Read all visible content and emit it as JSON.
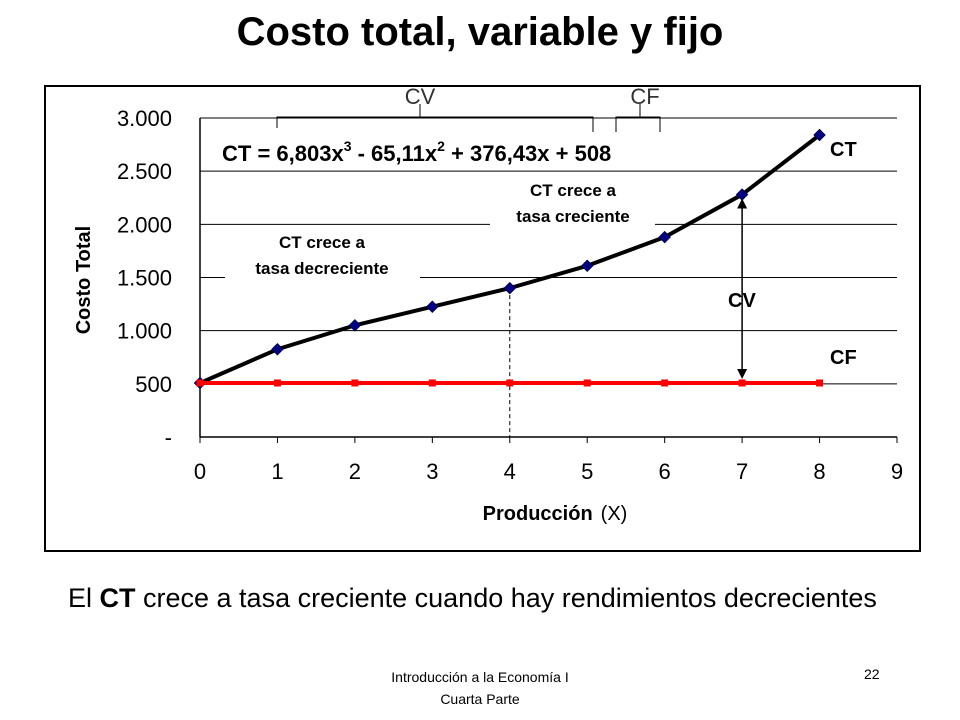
{
  "slide": {
    "title": "Costo total, variable y fijo",
    "body_prefix": "El ",
    "body_bold": "CT",
    "body_rest": " crece a tasa creciente cuando hay rendimientos decrecientes",
    "footer_line1": "Introducción a la Economía I",
    "footer_line2": "Cuarta Parte",
    "page_number": "22"
  },
  "chart_data": {
    "type": "line",
    "xlabel": "Producción",
    "xlabel_suffix": "(X)",
    "ylabel": "Costo Total",
    "xlim": [
      0,
      9
    ],
    "ylim": [
      0,
      3000
    ],
    "x_ticks": [
      "0",
      "1",
      "2",
      "3",
      "4",
      "5",
      "6",
      "7",
      "8",
      "9"
    ],
    "y_ticks": [
      {
        "value": 0,
        "label": "-"
      },
      {
        "value": 500,
        "label": "500"
      },
      {
        "value": 1000,
        "label": "1.000"
      },
      {
        "value": 1500,
        "label": "1.500"
      },
      {
        "value": 2000,
        "label": "2.000"
      },
      {
        "value": 2500,
        "label": "2.500"
      },
      {
        "value": 3000,
        "label": "3.000"
      }
    ],
    "grid": true,
    "series": [
      {
        "name": "CT",
        "color": "#000080",
        "line_color": "#000000",
        "marker": "diamond",
        "x": [
          0,
          1,
          2,
          3,
          4,
          5,
          6,
          7,
          8
        ],
        "y": [
          508,
          825,
          1050,
          1225,
          1400,
          1610,
          1880,
          2280,
          2840
        ]
      },
      {
        "name": "CF",
        "color": "#ff0000",
        "line_color": "#ff0000",
        "marker": "square",
        "x": [
          0,
          1,
          2,
          3,
          4,
          5,
          6,
          7,
          8
        ],
        "y": [
          508,
          508,
          508,
          508,
          508,
          508,
          508,
          508,
          508
        ]
      }
    ],
    "equation": {
      "lhs": "CT = 6,803x",
      "exp1": "3",
      "t2": " - 65,11x",
      "exp2": "2",
      "t3": " + 376,43x + 508"
    },
    "annotations": {
      "cv_bracket_label": "CV",
      "cf_bracket_label": "CF",
      "decreasing_line1": "CT crece a",
      "decreasing_line2": "tasa decreciente",
      "increasing_line1": "CT crece a",
      "increasing_line2": "tasa creciente",
      "ct_label": "CT",
      "cv_label": "CV",
      "cf_label": "CF"
    },
    "inflection_x": 4,
    "arrow_x": 7
  }
}
